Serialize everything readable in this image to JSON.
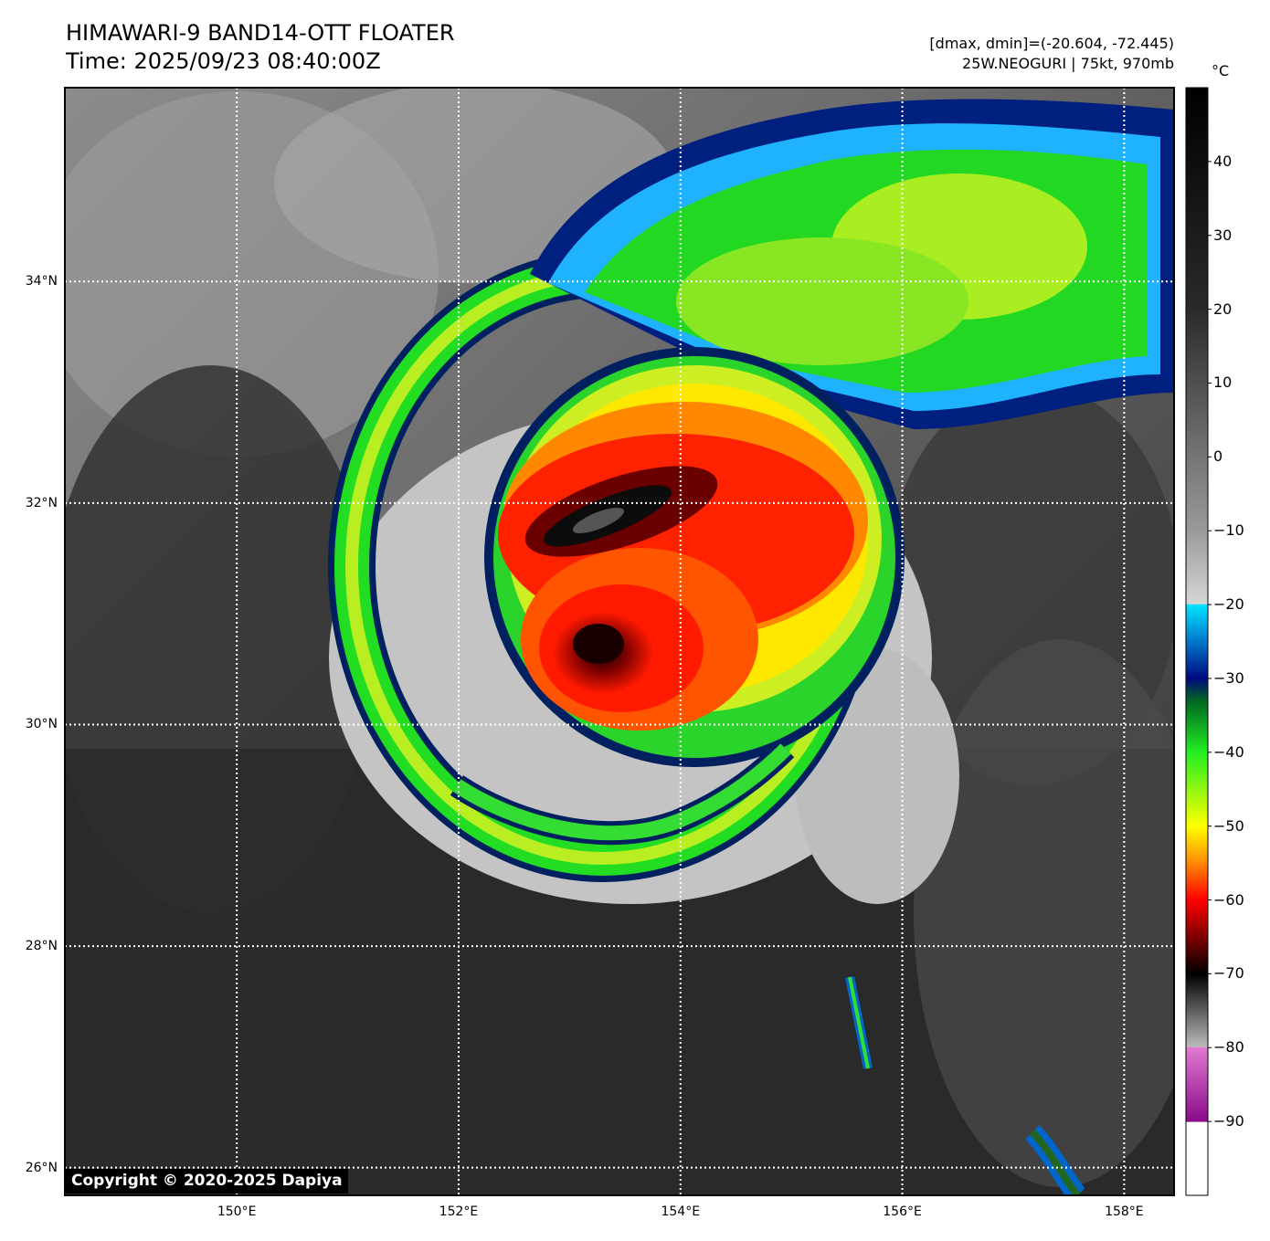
{
  "header": {
    "title_line1": "HIMAWARI-9 BAND14-OTT FLOATER",
    "title_line2": "Time: 2025/09/23 08:40:00Z",
    "info_line1": "[dmax, dmin]=(-20.604, -72.445)",
    "info_line2": "25W.NEOGURI | 75kt, 970mb"
  },
  "map": {
    "lat_labels": [
      "34°N",
      "32°N",
      "30°N",
      "28°N",
      "26°N"
    ],
    "lon_labels": [
      "150°E",
      "152°E",
      "154°E",
      "156°E",
      "158°E"
    ],
    "lat_values": [
      34,
      32,
      30,
      28,
      26
    ],
    "lon_values": [
      150,
      152,
      154,
      156,
      158
    ],
    "lat_range": [
      25.75,
      35.75
    ],
    "lon_range": [
      148.45,
      158.45
    ],
    "gridlines": "dotted white",
    "storm_center_lat": 30.7,
    "storm_center_lon": 153.3
  },
  "colorbar": {
    "unit": "°C",
    "tick_labels": [
      "40",
      "30",
      "20",
      "10",
      "0",
      "−10",
      "−20",
      "−30",
      "−40",
      "−50",
      "−60",
      "−70",
      "−80",
      "−90"
    ],
    "tick_values": [
      40,
      30,
      20,
      10,
      0,
      -10,
      -20,
      -30,
      -40,
      -50,
      -60,
      -70,
      -80,
      -90
    ],
    "range": [
      -100,
      50
    ],
    "stops": [
      {
        "value": 50,
        "color": "#000000"
      },
      {
        "value": 20,
        "color": "#2a2a2a"
      },
      {
        "value": -10,
        "color": "#9a9a9a"
      },
      {
        "value": -19.9,
        "color": "#d6d6d6"
      },
      {
        "value": -20,
        "color": "#00e5ff"
      },
      {
        "value": -25,
        "color": "#0077cc"
      },
      {
        "value": -30,
        "color": "#000a80"
      },
      {
        "value": -33,
        "color": "#006622"
      },
      {
        "value": -40,
        "color": "#22ee22"
      },
      {
        "value": -50,
        "color": "#ffff00"
      },
      {
        "value": -55,
        "color": "#ff8800"
      },
      {
        "value": -60,
        "color": "#ff0000"
      },
      {
        "value": -66,
        "color": "#660000"
      },
      {
        "value": -70,
        "color": "#000000"
      },
      {
        "value": -79.9,
        "color": "#bbbbbb"
      },
      {
        "value": -80,
        "color": "#e07ad0"
      },
      {
        "value": -90,
        "color": "#8a0a8a"
      },
      {
        "value": -90.1,
        "color": "#ffffff"
      },
      {
        "value": -100,
        "color": "#ffffff"
      }
    ]
  },
  "copyright": "Copyright © 2020-2025 Dapiya"
}
